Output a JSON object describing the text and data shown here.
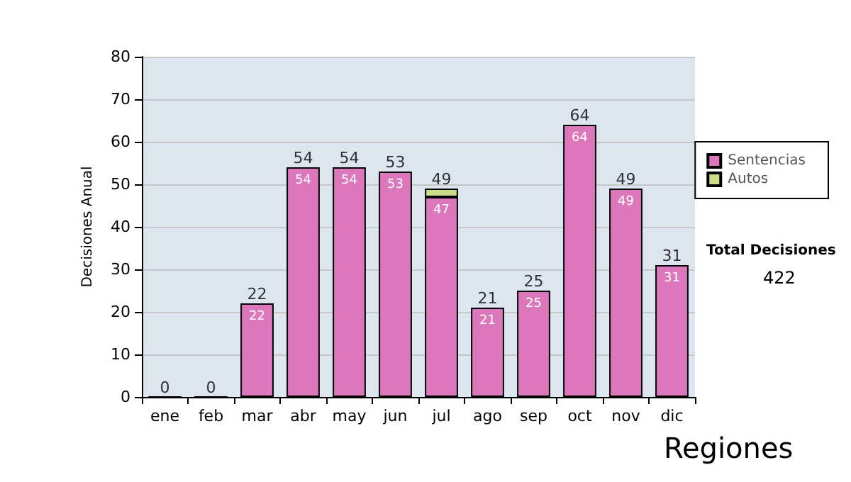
{
  "chart_data": {
    "type": "bar",
    "ylabel": "Decisiones Anual",
    "stacked": true,
    "categories": [
      "ene",
      "feb",
      "mar",
      "abr",
      "may",
      "jun",
      "jul",
      "ago",
      "sep",
      "oct",
      "nov",
      "dic"
    ],
    "series": [
      {
        "name": "Sentencias",
        "color": "#dd77bb",
        "values": [
          0,
          0,
          22,
          54,
          54,
          53,
          47,
          21,
          25,
          64,
          49,
          31
        ],
        "value_labels": [
          null,
          null,
          "22",
          "54",
          "54",
          "53",
          "47",
          "21",
          "25",
          "64",
          "49",
          "31"
        ]
      },
      {
        "name": "Autos",
        "color": "#ccdd88",
        "values": [
          null,
          null,
          null,
          null,
          null,
          null,
          2,
          null,
          null,
          null,
          null,
          null
        ]
      }
    ],
    "totals": [
      "0",
      "0",
      "22",
      "54",
      "54",
      "53",
      "49",
      "21",
      "25",
      "64",
      "49",
      "31"
    ],
    "ylim": [
      0,
      80
    ],
    "yticks": [
      0,
      10,
      20,
      30,
      40,
      50,
      60,
      70,
      80
    ],
    "grid": "y",
    "legend": "right",
    "annotations": [
      "Total Decisiones",
      "422",
      "Regiones"
    ]
  }
}
